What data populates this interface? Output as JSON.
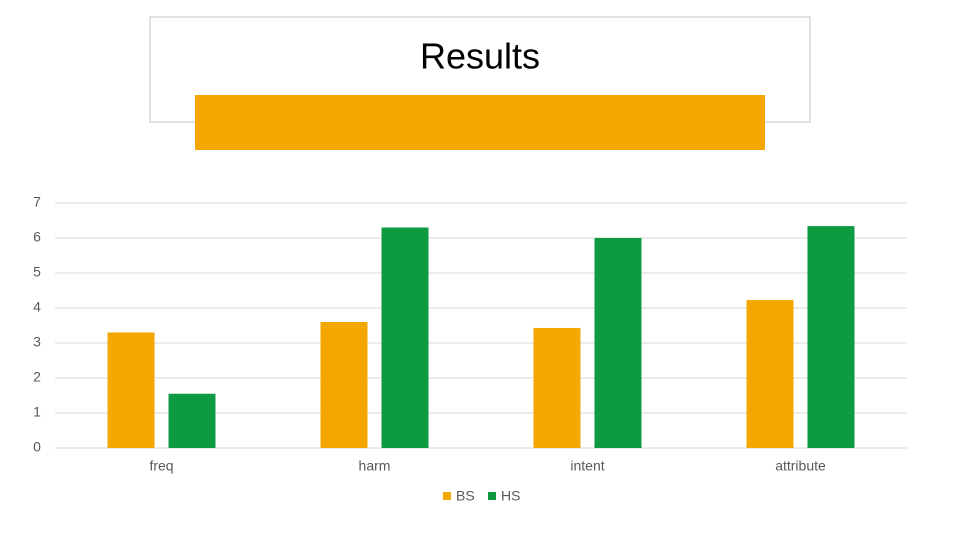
{
  "chart_data": {
    "type": "bar",
    "title": "Results",
    "categories": [
      "freq",
      "harm",
      "intent",
      "attribute"
    ],
    "series": [
      {
        "name": "BS",
        "color": "#f4a700",
        "values": [
          3.3,
          3.6,
          3.43,
          4.23
        ]
      },
      {
        "name": "HS",
        "color": "#0e9a40",
        "values": [
          1.55,
          6.3,
          6.0,
          6.34
        ]
      }
    ],
    "ylim": [
      0,
      7
    ],
    "yticks": [
      0,
      1,
      2,
      3,
      4,
      5,
      6,
      7
    ],
    "grid": true,
    "legend": "bottom"
  }
}
